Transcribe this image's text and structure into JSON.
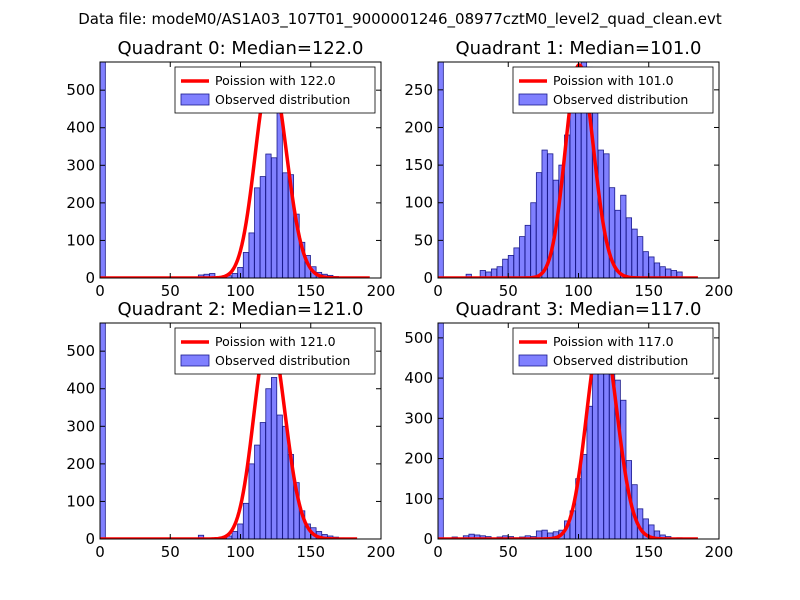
{
  "figure": {
    "suptitle": "Data file: modeM0/AS1A03_107T01_9000001246_08977cztM0_level2_quad_clean.evt"
  },
  "colors": {
    "histogram_fill": "#8080ff",
    "histogram_edge": "#1a1a8c",
    "poisson_line": "#ff0000",
    "legend_border": "#000000"
  },
  "chart_data": [
    {
      "type": "bar",
      "title": "Quadrant 0: Median=122.0",
      "median": 122.0,
      "xlim": [
        0,
        200
      ],
      "ylim": [
        0,
        575
      ],
      "xticks": [
        0,
        50,
        100,
        150,
        200
      ],
      "yticks": [
        0,
        100,
        200,
        300,
        400,
        500
      ],
      "legend_position": "top-right",
      "series": [
        {
          "name": "Poission with 122.0",
          "type": "line",
          "lambda": 122.0,
          "peak": 550,
          "x_range": [
            0,
            192
          ]
        },
        {
          "name": "Observed distribution",
          "type": "histogram",
          "bin_width": 3.8,
          "bins": [
            [
              0,
              575
            ],
            [
              70,
              8
            ],
            [
              74,
              10
            ],
            [
              78,
              12
            ],
            [
              86,
              3
            ],
            [
              90,
              6
            ],
            [
              94,
              12
            ],
            [
              98,
              28
            ],
            [
              102,
              68
            ],
            [
              106,
              120
            ],
            [
              110,
              240
            ],
            [
              114,
              270
            ],
            [
              118,
              330
            ],
            [
              122,
              320
            ],
            [
              126,
              450
            ],
            [
              130,
              280
            ],
            [
              134,
              275
            ],
            [
              138,
              170
            ],
            [
              142,
              95
            ],
            [
              146,
              60
            ],
            [
              150,
              30
            ],
            [
              154,
              15
            ],
            [
              158,
              10
            ],
            [
              162,
              7
            ],
            [
              166,
              4
            ]
          ]
        }
      ]
    },
    {
      "type": "bar",
      "title": "Quadrant 1: Median=101.0",
      "median": 101.0,
      "xlim": [
        0,
        200
      ],
      "ylim": [
        0,
        287
      ],
      "xticks": [
        0,
        50,
        100,
        150,
        200
      ],
      "yticks": [
        0,
        50,
        100,
        150,
        200,
        250
      ],
      "legend_position": "top-right",
      "series": [
        {
          "name": "Poission with 101.0",
          "type": "line",
          "lambda": 101.0,
          "peak": 283,
          "x_range": [
            0,
            185
          ]
        },
        {
          "name": "Observed distribution",
          "type": "histogram",
          "bin_width": 3.8,
          "bins": [
            [
              0,
              287
            ],
            [
              20,
              5
            ],
            [
              30,
              10
            ],
            [
              34,
              8
            ],
            [
              38,
              12
            ],
            [
              42,
              15
            ],
            [
              46,
              25
            ],
            [
              50,
              30
            ],
            [
              54,
              40
            ],
            [
              58,
              55
            ],
            [
              62,
              70
            ],
            [
              66,
              100
            ],
            [
              70,
              140
            ],
            [
              74,
              170
            ],
            [
              78,
              165
            ],
            [
              82,
              130
            ],
            [
              86,
              150
            ],
            [
              90,
              190
            ],
            [
              94,
              230
            ],
            [
              98,
              255
            ],
            [
              102,
              295
            ],
            [
              106,
              280
            ],
            [
              110,
              225
            ],
            [
              114,
              170
            ],
            [
              118,
              165
            ],
            [
              122,
              120
            ],
            [
              126,
              90
            ],
            [
              130,
              110
            ],
            [
              134,
              80
            ],
            [
              138,
              65
            ],
            [
              142,
              55
            ],
            [
              146,
              35
            ],
            [
              150,
              28
            ],
            [
              154,
              20
            ],
            [
              158,
              15
            ],
            [
              162,
              12
            ],
            [
              166,
              10
            ],
            [
              170,
              8
            ]
          ]
        }
      ]
    },
    {
      "type": "bar",
      "title": "Quadrant 2: Median=121.0",
      "median": 121.0,
      "xlim": [
        0,
        200
      ],
      "ylim": [
        0,
        575
      ],
      "xticks": [
        0,
        50,
        100,
        150,
        200
      ],
      "yticks": [
        0,
        100,
        200,
        300,
        400,
        500
      ],
      "legend_position": "top-right",
      "series": [
        {
          "name": "Poission with 121.0",
          "type": "line",
          "lambda": 121.0,
          "peak": 553,
          "x_range": [
            0,
            183
          ]
        },
        {
          "name": "Observed distribution",
          "type": "histogram",
          "bin_width": 3.8,
          "bins": [
            [
              0,
              575
            ],
            [
              70,
              10
            ],
            [
              78,
              3
            ],
            [
              86,
              5
            ],
            [
              90,
              8
            ],
            [
              94,
              20
            ],
            [
              98,
              40
            ],
            [
              102,
              95
            ],
            [
              106,
              200
            ],
            [
              110,
              250
            ],
            [
              114,
              310
            ],
            [
              118,
              400
            ],
            [
              122,
              430
            ],
            [
              126,
              330
            ],
            [
              130,
              300
            ],
            [
              134,
              225
            ],
            [
              138,
              150
            ],
            [
              142,
              75
            ],
            [
              146,
              40
            ],
            [
              150,
              30
            ],
            [
              154,
              20
            ],
            [
              158,
              12
            ],
            [
              162,
              8
            ],
            [
              166,
              5
            ],
            [
              170,
              3
            ],
            [
              178,
              2
            ]
          ]
        }
      ]
    },
    {
      "type": "bar",
      "title": "Quadrant 3: Median=117.0",
      "median": 117.0,
      "xlim": [
        0,
        200
      ],
      "ylim": [
        0,
        537
      ],
      "xticks": [
        0,
        50,
        100,
        150,
        200
      ],
      "yticks": [
        0,
        100,
        200,
        300,
        400,
        500
      ],
      "legend_position": "top-right",
      "series": [
        {
          "name": "Poission with 117.0",
          "type": "line",
          "lambda": 117.0,
          "peak": 516,
          "x_range": [
            0,
            185
          ]
        },
        {
          "name": "Observed distribution",
          "type": "histogram",
          "bin_width": 3.8,
          "bins": [
            [
              0,
              537
            ],
            [
              10,
              5
            ],
            [
              18,
              8
            ],
            [
              22,
              12
            ],
            [
              26,
              10
            ],
            [
              30,
              8
            ],
            [
              34,
              6
            ],
            [
              42,
              5
            ],
            [
              46,
              8
            ],
            [
              50,
              6
            ],
            [
              54,
              3
            ],
            [
              58,
              5
            ],
            [
              62,
              8
            ],
            [
              66,
              6
            ],
            [
              70,
              20
            ],
            [
              74,
              22
            ],
            [
              78,
              15
            ],
            [
              82,
              18
            ],
            [
              86,
              22
            ],
            [
              90,
              45
            ],
            [
              94,
              70
            ],
            [
              98,
              150
            ],
            [
              102,
              210
            ],
            [
              106,
              330
            ],
            [
              110,
              425
            ],
            [
              114,
              470
            ],
            [
              118,
              490
            ],
            [
              122,
              470
            ],
            [
              126,
              395
            ],
            [
              130,
              345
            ],
            [
              134,
              195
            ],
            [
              138,
              135
            ],
            [
              142,
              75
            ],
            [
              146,
              50
            ],
            [
              150,
              35
            ],
            [
              154,
              20
            ],
            [
              158,
              10
            ],
            [
              162,
              6
            ],
            [
              170,
              3
            ]
          ]
        }
      ]
    }
  ]
}
